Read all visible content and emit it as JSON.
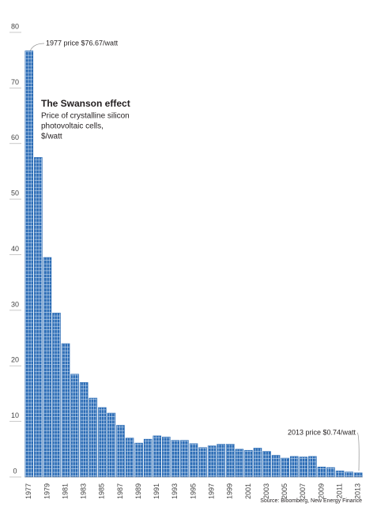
{
  "chart_data": {
    "type": "bar",
    "title": "The Swanson effect",
    "subtitle": [
      "Price of crystalline silicon",
      "photovoltaic cells,",
      "$/watt"
    ],
    "annotations": [
      "1977 price $76.67/watt",
      "2013 price $0.74/watt"
    ],
    "source": "Source: Bloomberg, New Energy Finance",
    "categories": [
      "1977",
      null,
      "1979",
      null,
      "1981",
      null,
      "1983",
      null,
      "1985",
      null,
      "1987",
      null,
      "1989",
      null,
      "1991",
      null,
      "1993",
      null,
      "1995",
      null,
      "1997",
      null,
      "1999",
      null,
      "2001",
      null,
      "2003",
      null,
      "2005",
      null,
      "2007",
      null,
      "2009",
      null,
      "2011",
      null,
      "2013"
    ],
    "values": [
      76.67,
      57.5,
      39.5,
      29.5,
      24,
      18.5,
      17,
      14.2,
      12.5,
      11.5,
      9.3,
      7,
      6.1,
      6.8,
      7.4,
      7.2,
      6.6,
      6.6,
      6,
      5.3,
      5.6,
      5.9,
      5.9,
      5,
      4.8,
      5.2,
      4.6,
      3.9,
      3.4,
      3.7,
      3.6,
      3.7,
      1.8,
      1.7,
      1.1,
      0.9,
      0.74
    ],
    "color": "#2b6cb5",
    "ylim": [
      0,
      80
    ],
    "yticks": [
      0,
      10,
      20,
      30,
      40,
      50,
      60,
      70,
      80
    ]
  }
}
